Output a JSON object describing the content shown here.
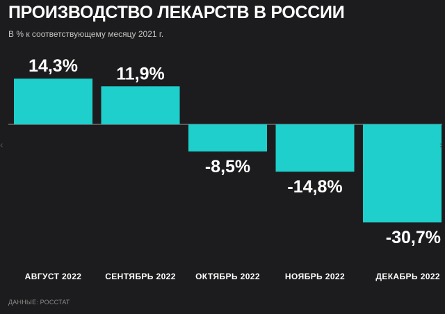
{
  "title": "ПРОИЗВОДСТВО ЛЕКАРСТВ В РОССИИ",
  "subtitle": "В % к соответствующему месяцу 2021 г.",
  "source": "ДАННЫЕ: РОССТАТ",
  "colors": {
    "background": "#1c1c1e",
    "bar": "#1ecfcb",
    "baseline": "#9a9a9a"
  },
  "chart_data": {
    "type": "bar",
    "categories": [
      "АВГУСТ 2022",
      "СЕНТЯБРЬ 2022",
      "ОКТЯБРЬ 2022",
      "НОЯБРЬ 2022",
      "ДЕКАБРЬ 2022"
    ],
    "values": [
      14.3,
      11.9,
      -8.5,
      -14.8,
      -30.7
    ],
    "value_labels": [
      "14,3%",
      "11,9%",
      "-8,5%",
      "-14,8%",
      "-30,7%"
    ],
    "title": "ПРОИЗВОДСТВО ЛЕКАРСТВ В РОССИИ",
    "subtitle": "В % к соответствующему месяцу 2021 г.",
    "xlabel": "",
    "ylabel": "",
    "ylim": [
      -30.7,
      14.3
    ],
    "grid": false,
    "legend": "none"
  }
}
